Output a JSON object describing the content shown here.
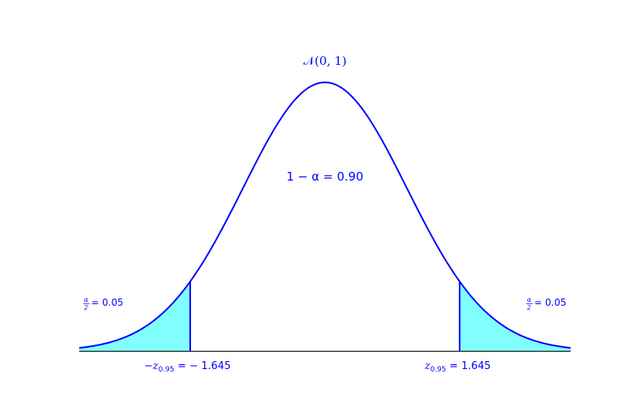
{
  "chart_data": {
    "type": "area",
    "title": "𝒩(0, 1)",
    "xlabel": "",
    "ylabel": "",
    "xlim": [
      -3.0,
      3.0
    ],
    "ylim": [
      0,
      0.4
    ],
    "grid": false,
    "distribution": {
      "mean": 0,
      "sd": 1
    },
    "curve_color": "#0000ff",
    "fill_color": "#80ffff",
    "critical_values": [
      -1.645,
      1.645
    ],
    "shaded_regions": [
      {
        "from": -3.0,
        "to": -1.645,
        "area": 0.05
      },
      {
        "from": 1.645,
        "to": 3.0,
        "area": 0.05
      }
    ],
    "annotations": {
      "center": "1 − α = 0.90",
      "left_tail_value": "= 0.05",
      "right_tail_value": "= 0.05",
      "left_critical": "= − 1.645",
      "right_critical": "= 1.645"
    }
  }
}
